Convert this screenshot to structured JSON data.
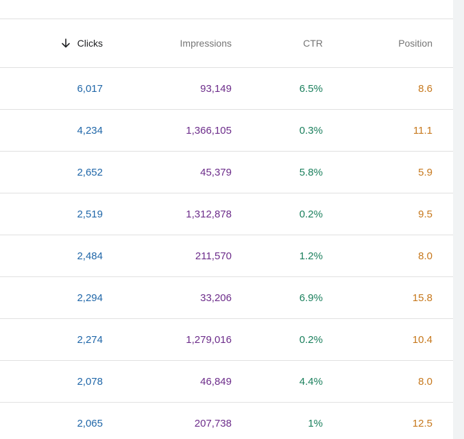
{
  "header": {
    "clicks_label": "Clicks",
    "impressions_label": "Impressions",
    "ctr_label": "CTR",
    "position_label": "Position",
    "sort_icon": "arrow-down-icon"
  },
  "colors": {
    "clicks": "#1f66a8",
    "impressions": "#6c2c8a",
    "ctr": "#1a7f5c",
    "position": "#c6771b"
  },
  "rows": [
    {
      "clicks": "6,017",
      "impressions": "93,149",
      "ctr": "6.5%",
      "position": "8.6"
    },
    {
      "clicks": "4,234",
      "impressions": "1,366,105",
      "ctr": "0.3%",
      "position": "11.1"
    },
    {
      "clicks": "2,652",
      "impressions": "45,379",
      "ctr": "5.8%",
      "position": "5.9"
    },
    {
      "clicks": "2,519",
      "impressions": "1,312,878",
      "ctr": "0.2%",
      "position": "9.5"
    },
    {
      "clicks": "2,484",
      "impressions": "211,570",
      "ctr": "1.2%",
      "position": "8.0"
    },
    {
      "clicks": "2,294",
      "impressions": "33,206",
      "ctr": "6.9%",
      "position": "15.8"
    },
    {
      "clicks": "2,274",
      "impressions": "1,279,016",
      "ctr": "0.2%",
      "position": "10.4"
    },
    {
      "clicks": "2,078",
      "impressions": "46,849",
      "ctr": "4.4%",
      "position": "8.0"
    },
    {
      "clicks": "2,065",
      "impressions": "207,738",
      "ctr": "1%",
      "position": "12.5"
    }
  ]
}
